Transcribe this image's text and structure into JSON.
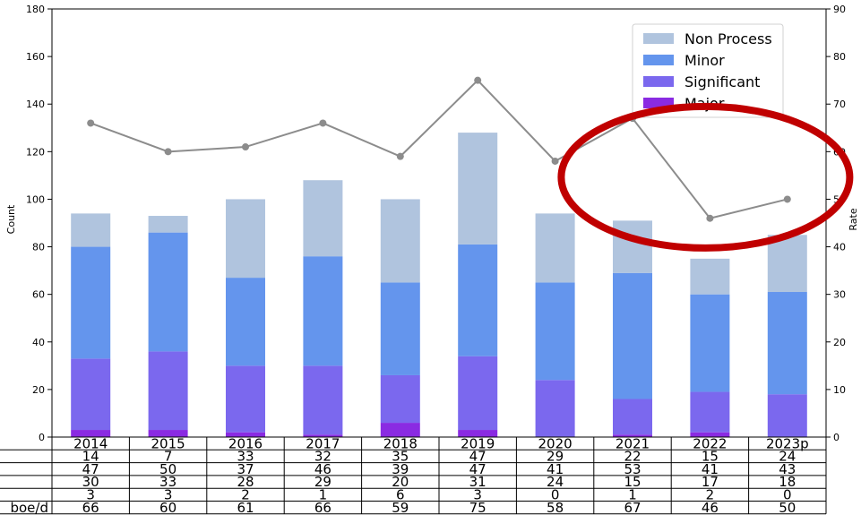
{
  "chart_data": {
    "type": "bar",
    "ylabel": "Count",
    "y2label": "Rate",
    "ylim": [
      0,
      180
    ],
    "y2lim": [
      0,
      90
    ],
    "yticks": [
      0,
      20,
      40,
      60,
      80,
      100,
      120,
      140,
      160,
      180
    ],
    "y2ticks": [
      0,
      10,
      20,
      30,
      40,
      50,
      60,
      70,
      80,
      90
    ],
    "categories": [
      "2014",
      "2015",
      "2016",
      "2017",
      "2018",
      "2019",
      "2020",
      "2021",
      "2022",
      "2023p"
    ],
    "series": [
      {
        "name": "Major",
        "color": "#8a2be2",
        "values": [
          3,
          3,
          2,
          1,
          6,
          3,
          0,
          1,
          2,
          0
        ]
      },
      {
        "name": "Significant",
        "color": "#7b68ee",
        "values": [
          30,
          33,
          28,
          29,
          20,
          31,
          24,
          15,
          17,
          18
        ]
      },
      {
        "name": "Minor",
        "color": "#6495ed",
        "values": [
          47,
          50,
          37,
          46,
          39,
          47,
          41,
          53,
          41,
          43
        ]
      },
      {
        "name": "Non Process",
        "color": "#b0c4de",
        "values": [
          14,
          7,
          33,
          32,
          35,
          47,
          29,
          22,
          15,
          24
        ]
      }
    ],
    "line": {
      "axis": "right",
      "color": "#8c8c8c",
      "values": [
        66,
        60,
        61,
        66,
        59,
        75,
        58,
        67,
        46,
        50
      ]
    },
    "legend": {
      "position": "top-right",
      "entries": [
        "Non Process",
        "Minor",
        "Significant",
        "Major"
      ]
    },
    "table": {
      "row_labels": [
        "",
        "",
        "",
        "",
        "boe/d"
      ],
      "rows": [
        [
          14,
          7,
          33,
          32,
          35,
          47,
          29,
          22,
          15,
          24
        ],
        [
          47,
          50,
          37,
          46,
          39,
          47,
          41,
          53,
          41,
          43
        ],
        [
          30,
          33,
          28,
          29,
          20,
          31,
          24,
          15,
          17,
          18
        ],
        [
          3,
          3,
          2,
          1,
          6,
          3,
          0,
          1,
          2,
          0
        ],
        [
          66,
          60,
          61,
          66,
          59,
          75,
          58,
          67,
          46,
          50
        ]
      ]
    },
    "annotation": {
      "shape": "ellipse",
      "color": "#c00000",
      "target_categories": [
        "2021",
        "2022",
        "2023p"
      ]
    }
  }
}
